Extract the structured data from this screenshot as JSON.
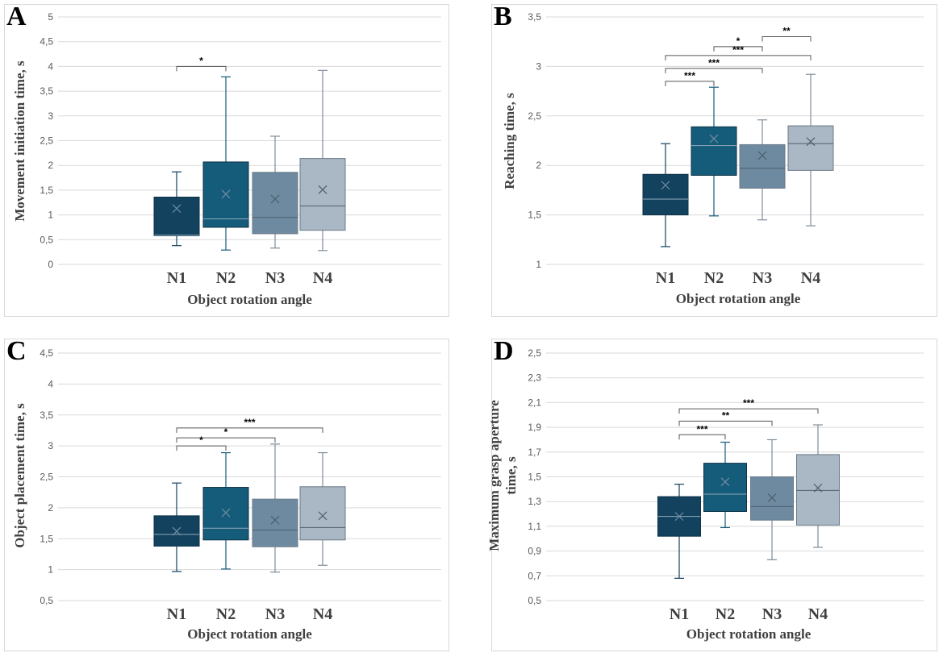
{
  "chart_data": [
    {
      "panel": "A",
      "type": "box",
      "ylabel": "Movement initiation time, s",
      "xlabel": "Object rotation angle",
      "ylim": [
        0,
        5
      ],
      "yticks": [
        "0",
        "0,5",
        "1",
        "1,5",
        "2",
        "2,5",
        "3",
        "3,5",
        "4",
        "4,5",
        "5"
      ],
      "categories": [
        "N1",
        "N2",
        "N3",
        "N4"
      ],
      "colors": [
        "#13425f",
        "#155b7a",
        "#6d8aa0",
        "#aab8c5"
      ],
      "boxes": [
        {
          "min": 0.38,
          "q1": 0.58,
          "median": 0.59,
          "q3": 1.36,
          "max": 1.87,
          "mean": 1.13
        },
        {
          "min": 0.29,
          "q1": 0.75,
          "median": 0.92,
          "q3": 2.07,
          "max": 3.79,
          "mean": 1.42
        },
        {
          "min": 0.33,
          "q1": 0.62,
          "median": 0.95,
          "q3": 1.86,
          "max": 2.59,
          "mean": 1.32
        },
        {
          "min": 0.28,
          "q1": 0.69,
          "median": 1.18,
          "q3": 2.14,
          "max": 3.92,
          "mean": 1.51
        }
      ],
      "significance": [
        {
          "from": 0,
          "to": 1,
          "y": 4.0,
          "label": "*"
        }
      ]
    },
    {
      "panel": "B",
      "type": "box",
      "ylabel": "Reaching time, s",
      "xlabel": "Object rotation angle",
      "ylim": [
        1,
        3.5
      ],
      "yticks": [
        "1",
        "1,5",
        "2",
        "2,5",
        "3",
        "3,5"
      ],
      "categories": [
        "N1",
        "N2",
        "N3",
        "N4"
      ],
      "colors": [
        "#13425f",
        "#155b7a",
        "#6d8aa0",
        "#aab8c5"
      ],
      "boxes": [
        {
          "min": 1.18,
          "q1": 1.5,
          "median": 1.66,
          "q3": 1.91,
          "max": 2.22,
          "mean": 1.8
        },
        {
          "min": 1.49,
          "q1": 1.9,
          "median": 2.2,
          "q3": 2.39,
          "max": 2.79,
          "mean": 2.27
        },
        {
          "min": 1.45,
          "q1": 1.77,
          "median": 1.97,
          "q3": 2.21,
          "max": 2.46,
          "mean": 2.1
        },
        {
          "min": 1.39,
          "q1": 1.95,
          "median": 2.22,
          "q3": 2.4,
          "max": 2.92,
          "mean": 2.24
        }
      ],
      "significance": [
        {
          "from": 1,
          "to": 2,
          "y": 3.2,
          "label": "*"
        },
        {
          "from": 2,
          "to": 3,
          "y": 3.3,
          "label": "**"
        },
        {
          "from": 0,
          "to": 3,
          "y": 3.11,
          "label": "***"
        },
        {
          "from": 0,
          "to": 2,
          "y": 2.98,
          "label": "***"
        },
        {
          "from": 0,
          "to": 1,
          "y": 2.85,
          "label": "***"
        }
      ]
    },
    {
      "panel": "C",
      "type": "box",
      "ylabel": "Object placement time, s",
      "xlabel": "Object rotation angle",
      "ylim": [
        0.5,
        4.5
      ],
      "yticks": [
        "0,5",
        "1",
        "1,5",
        "2",
        "2,5",
        "3",
        "3,5",
        "4",
        "4,5"
      ],
      "categories": [
        "N1",
        "N2",
        "N3",
        "N4"
      ],
      "colors": [
        "#13425f",
        "#155b7a",
        "#6d8aa0",
        "#aab8c5"
      ],
      "boxes": [
        {
          "min": 0.97,
          "q1": 1.38,
          "median": 1.57,
          "q3": 1.87,
          "max": 2.4,
          "mean": 1.62
        },
        {
          "min": 1.01,
          "q1": 1.48,
          "median": 1.67,
          "q3": 2.33,
          "max": 2.89,
          "mean": 1.92
        },
        {
          "min": 0.96,
          "q1": 1.37,
          "median": 1.64,
          "q3": 2.14,
          "max": 3.03,
          "mean": 1.8
        },
        {
          "min": 1.07,
          "q1": 1.48,
          "median": 1.68,
          "q3": 2.34,
          "max": 2.89,
          "mean": 1.87
        }
      ],
      "significance": [
        {
          "from": 0,
          "to": 3,
          "y": 3.29,
          "label": "***"
        },
        {
          "from": 0,
          "to": 2,
          "y": 3.13,
          "label": "*"
        },
        {
          "from": 0,
          "to": 1,
          "y": 3.0,
          "label": "*"
        }
      ]
    },
    {
      "panel": "D",
      "type": "box",
      "ylabel": "Maximum grasp aperture time, s",
      "xlabel": "Object rotation angle",
      "ylim": [
        0.5,
        2.5
      ],
      "yticks": [
        "0,5",
        "0,7",
        "0,9",
        "1,1",
        "1,3",
        "1,5",
        "1,7",
        "1,9",
        "2,1",
        "2,3",
        "2,5"
      ],
      "categories": [
        "N1",
        "N2",
        "N3",
        "N4"
      ],
      "colors": [
        "#13425f",
        "#155b7a",
        "#6d8aa0",
        "#aab8c5"
      ],
      "boxes": [
        {
          "min": 0.68,
          "q1": 1.02,
          "median": 1.18,
          "q3": 1.34,
          "max": 1.44,
          "mean": 1.18
        },
        {
          "min": 1.09,
          "q1": 1.22,
          "median": 1.36,
          "q3": 1.61,
          "max": 1.78,
          "mean": 1.46
        },
        {
          "min": 0.83,
          "q1": 1.15,
          "median": 1.26,
          "q3": 1.5,
          "max": 1.8,
          "mean": 1.33
        },
        {
          "min": 0.93,
          "q1": 1.11,
          "median": 1.39,
          "q3": 1.68,
          "max": 1.92,
          "mean": 1.41
        }
      ],
      "significance": [
        {
          "from": 0,
          "to": 3,
          "y": 2.05,
          "label": "***"
        },
        {
          "from": 0,
          "to": 2,
          "y": 1.95,
          "label": "**"
        },
        {
          "from": 0,
          "to": 1,
          "y": 1.84,
          "label": "***"
        }
      ]
    }
  ]
}
